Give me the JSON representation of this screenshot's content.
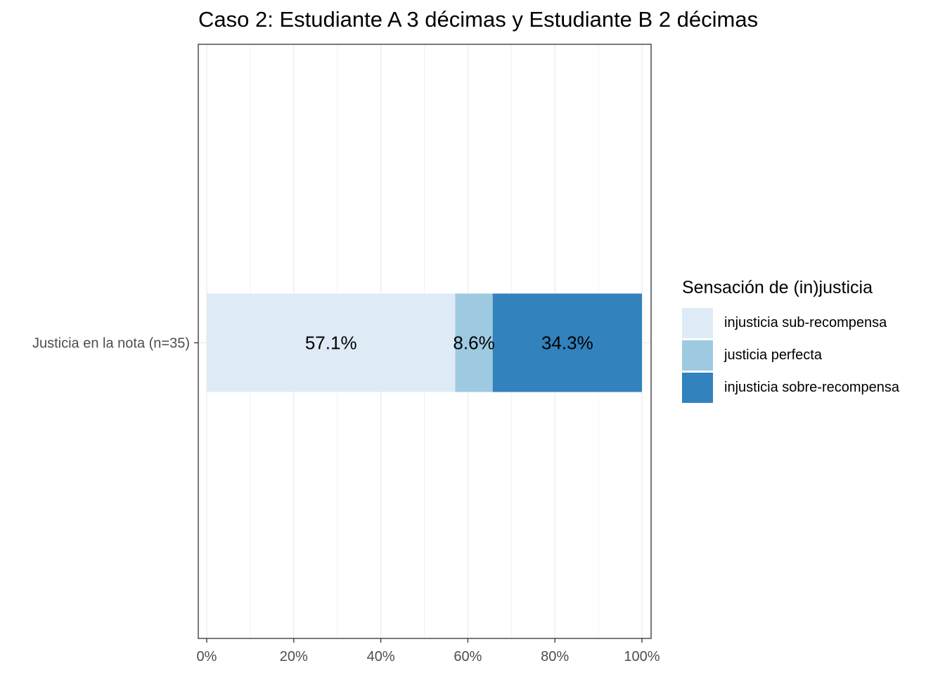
{
  "chart_data": {
    "type": "bar",
    "orientation": "horizontal",
    "stacked": true,
    "title": "Caso 2: Estudiante A 3 décimas y Estudiante B 2 décimas",
    "categories": [
      "Justicia en la nota (n=35)"
    ],
    "series": [
      {
        "name": "injusticia sub-recompensa",
        "values": [
          57.1
        ],
        "label": "57.1%",
        "color": "#deebf7"
      },
      {
        "name": "justicia perfecta",
        "values": [
          8.6
        ],
        "label": "8.6%",
        "color": "#9ecae1"
      },
      {
        "name": "injusticia sobre-recompensa",
        "values": [
          34.3
        ],
        "label": "34.3%",
        "color": "#3182bd"
      }
    ],
    "xlim": [
      0,
      100
    ],
    "x_ticks": [
      {
        "value": 0,
        "label": "0%"
      },
      {
        "value": 20,
        "label": "20%"
      },
      {
        "value": 40,
        "label": "40%"
      },
      {
        "value": 60,
        "label": "60%"
      },
      {
        "value": 80,
        "label": "80%"
      },
      {
        "value": 100,
        "label": "100%"
      }
    ],
    "grid": true,
    "legend": {
      "title": "Sensación de (in)justicia",
      "position": "right"
    }
  }
}
